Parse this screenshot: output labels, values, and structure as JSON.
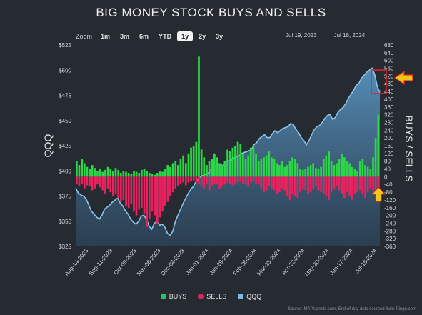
{
  "title": "BIG MONEY STOCK BUYS AND SELLS",
  "zoom": {
    "label": "Zoom",
    "options": [
      "1m",
      "3m",
      "6m",
      "YTD",
      "1y",
      "2y",
      "3y"
    ],
    "active": "1y"
  },
  "range": {
    "start": "Jul 19, 2023",
    "arrow": "→",
    "end": "Jul 18, 2024"
  },
  "legend": [
    {
      "name": "BUYS",
      "color": "#22c55e"
    },
    {
      "name": "SELLS",
      "color": "#e0245e"
    },
    {
      "name": "QQQ",
      "color": "#7ab8e8"
    }
  ],
  "source": "Source: MAPsignals.com, End of day data sourced from Tiingo.com",
  "colors": {
    "buys": "#2bd647",
    "sells": "#e8225f",
    "qqq": "#8cc4ef",
    "annotation": "#e0262b",
    "arrow": "#f5c518"
  },
  "chart_data": {
    "type": "bar",
    "ylabel_left": "QQQ",
    "ylabel_right": "BUYS / SELLS",
    "left_ticks": [
      "$525",
      "$500",
      "$475",
      "$450",
      "$425",
      "$400",
      "$375",
      "$350",
      "$325"
    ],
    "right_ticks": [
      "680",
      "640",
      "600",
      "560",
      "520",
      "480",
      "440",
      "400",
      "360",
      "320",
      "280",
      "240",
      "200",
      "160",
      "120",
      "80",
      "40",
      "0",
      "-40",
      "-80",
      "-120",
      "-160",
      "-200",
      "-240",
      "-280",
      "-320",
      "-360"
    ],
    "x_ticks": [
      "Aug-14-2023",
      "Sep-11-2023",
      "Oct-09-2023",
      "Nov-06-2023",
      "Dec-04-2023",
      "Jan-01-2024",
      "Jan-29-2024",
      "Feb-26-2024",
      "Mar-25-2024",
      "Apr-22-2024",
      "May-20-2024",
      "Jun-17-2024",
      "Jul-15-2024"
    ],
    "ylim_left": [
      325,
      525
    ],
    "ylim_right": [
      -360,
      680
    ],
    "qqq_series": {
      "name": "QQQ",
      "values": [
        383,
        378,
        376,
        375,
        372,
        366,
        360,
        357,
        354,
        352,
        356,
        362,
        364,
        366,
        369,
        371,
        373,
        368,
        365,
        360,
        357,
        352,
        349,
        347,
        350,
        355,
        356,
        352,
        345,
        342,
        348,
        350,
        346,
        347,
        344,
        338,
        336,
        340,
        350,
        356,
        362,
        368,
        373,
        378,
        382,
        385,
        390,
        393,
        395,
        396,
        397,
        399,
        402,
        404,
        406,
        407,
        405,
        408,
        410,
        410,
        412,
        414,
        414,
        417,
        418,
        419,
        420,
        421,
        426,
        428,
        432,
        434,
        436,
        433,
        433,
        437,
        440,
        438,
        440,
        442,
        443,
        444,
        447,
        446,
        441,
        438,
        433,
        430,
        426,
        430,
        436,
        441,
        444,
        445,
        448,
        452,
        455,
        456,
        451,
        453,
        458,
        461,
        463,
        467,
        472,
        476,
        480,
        485,
        487,
        492,
        495,
        498,
        500,
        502,
        496,
        484,
        478
      ]
    },
    "buys_series": {
      "name": "BUYS",
      "values": [
        80,
        60,
        90,
        70,
        50,
        40,
        60,
        45,
        30,
        40,
        25,
        35,
        50,
        40,
        30,
        45,
        35,
        20,
        30,
        25,
        20,
        15,
        30,
        25,
        20,
        35,
        40,
        30,
        20,
        15,
        10,
        20,
        30,
        25,
        40,
        60,
        50,
        70,
        80,
        60,
        90,
        110,
        70,
        120,
        150,
        160,
        180,
        620,
        140,
        100,
        60,
        80,
        90,
        120,
        100,
        70,
        60,
        80,
        140,
        130,
        150,
        160,
        180,
        170,
        120,
        90,
        110,
        150,
        160,
        120,
        80,
        90,
        100,
        110,
        130,
        100,
        90,
        70,
        60,
        80,
        50,
        60,
        80,
        100,
        90,
        70,
        40,
        35,
        40,
        50,
        60,
        70,
        45,
        40,
        50,
        90,
        110,
        130,
        80,
        60,
        70,
        90,
        120,
        100,
        80,
        70,
        50,
        40,
        30,
        80,
        90,
        60,
        50,
        40,
        100,
        200,
        320
      ]
    },
    "sells_series": {
      "name": "SELLS",
      "values": [
        -40,
        -50,
        -35,
        -60,
        -45,
        -50,
        -70,
        -60,
        -40,
        -55,
        -70,
        -90,
        -60,
        -80,
        -100,
        -90,
        -110,
        -130,
        -120,
        -150,
        -160,
        -140,
        -180,
        -200,
        -170,
        -160,
        -190,
        -260,
        -220,
        -180,
        -200,
        -240,
        -210,
        -180,
        -150,
        -130,
        -100,
        -80,
        -60,
        -50,
        -40,
        -30,
        -45,
        -30,
        -25,
        -20,
        -30,
        -40,
        -50,
        -60,
        -40,
        -70,
        -50,
        -35,
        -40,
        -60,
        -50,
        -40,
        -30,
        -35,
        -45,
        -40,
        -30,
        -25,
        -35,
        -40,
        -50,
        -30,
        -20,
        -35,
        -40,
        -60,
        -80,
        -70,
        -50,
        -60,
        -70,
        -90,
        -80,
        -60,
        -70,
        -100,
        -120,
        -90,
        -100,
        -110,
        -80,
        -60,
        -70,
        -90,
        -80,
        -60,
        -50,
        -70,
        -80,
        -90,
        -100,
        -120,
        -80,
        -60,
        -50,
        -70,
        -90,
        -110,
        -80,
        -100,
        -120,
        -90,
        -80,
        -70,
        -90,
        -110,
        -80,
        -60,
        -70,
        -90,
        -100
      ]
    }
  }
}
